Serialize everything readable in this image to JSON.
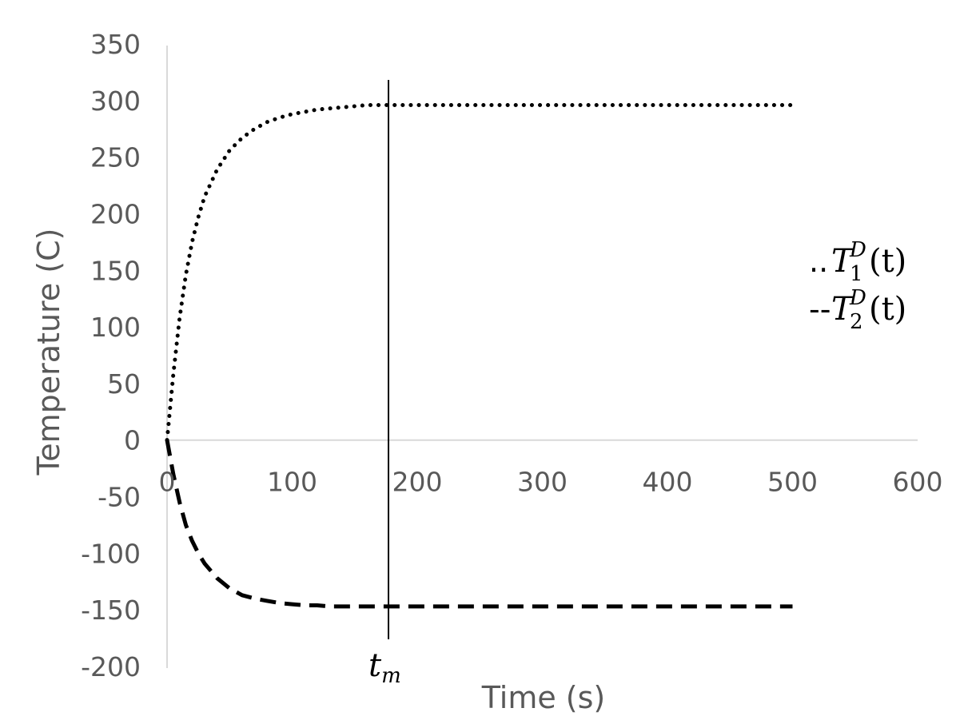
{
  "chart_data": {
    "type": "line",
    "xlabel": "Time (s)",
    "ylabel": "Temperature (C)",
    "xlim": [
      0,
      600
    ],
    "ylim": [
      -200,
      350
    ],
    "x_ticks": [
      "0",
      "100",
      "200",
      "300",
      "400",
      "500",
      "600"
    ],
    "y_ticks": [
      "350",
      "300",
      "250",
      "200",
      "150",
      "100",
      "50",
      "0",
      "-50",
      "-100",
      "-150",
      "-200"
    ],
    "grid": false,
    "legend_position": "right",
    "legend": [
      {
        "prefix": "..",
        "symbol": "T",
        "superscript": "D",
        "subscript": "1",
        "argument": "(t)"
      },
      {
        "prefix": "--",
        "symbol": "T",
        "superscript": "D",
        "subscript": "2",
        "argument": "(t)"
      }
    ],
    "marker": {
      "x": 177,
      "label": "t",
      "label_subscript": "m"
    },
    "series": [
      {
        "style": "dotted",
        "color": "#000000",
        "x": [
          0,
          5,
          10,
          15,
          20,
          25,
          30,
          40,
          50,
          60,
          70,
          80,
          90,
          100,
          110,
          120,
          130,
          140,
          150,
          160,
          170,
          180,
          200,
          250,
          300,
          350,
          400,
          450,
          500
        ],
        "y": [
          0,
          58,
          108,
          146,
          175,
          197,
          215,
          239,
          256,
          267,
          275,
          281,
          285,
          288,
          290,
          292,
          293,
          294,
          295,
          296,
          296,
          296,
          296,
          296,
          296,
          296,
          296,
          296,
          296
        ]
      },
      {
        "style": "dashed",
        "color": "#000000",
        "x": [
          0,
          5,
          10,
          15,
          20,
          25,
          30,
          40,
          50,
          60,
          70,
          80,
          90,
          100,
          110,
          120,
          130,
          140,
          150,
          160,
          170,
          180,
          200,
          250,
          300,
          350,
          400,
          450,
          500
        ],
        "y": [
          0,
          -30,
          -55,
          -75,
          -89,
          -100,
          -109,
          -122,
          -131,
          -137,
          -140,
          -142,
          -144,
          -145,
          -146,
          -146,
          -147,
          -147,
          -147,
          -147,
          -147,
          -147,
          -147,
          -147,
          -147,
          -147,
          -147,
          -147,
          -147
        ]
      }
    ]
  }
}
